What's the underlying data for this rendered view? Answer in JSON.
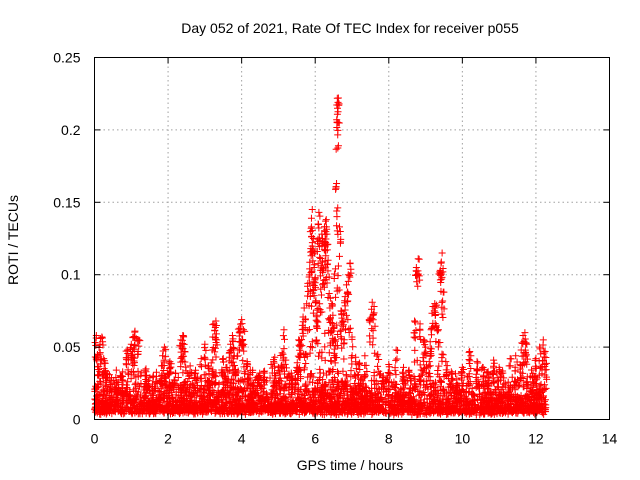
{
  "chart_data": {
    "type": "scatter",
    "title": "Day 052 of 2021, Rate Of TEC Index for receiver p055",
    "xlabel": "GPS time / hours",
    "ylabel": "ROTI / TECUs",
    "xlim": [
      0,
      14
    ],
    "ylim": [
      0,
      0.25
    ],
    "x_ticks": [
      0,
      2,
      4,
      6,
      8,
      10,
      12,
      14
    ],
    "x_tick_labels": [
      "0",
      "2",
      "4",
      "6",
      "8",
      "10",
      "12",
      "14"
    ],
    "y_ticks": [
      0,
      0.05,
      0.1,
      0.15,
      0.2,
      0.25
    ],
    "y_tick_labels": [
      "0",
      "0.05",
      "0.1",
      "0.15",
      "0.2",
      "0.25"
    ],
    "grid": true,
    "marker": "+",
    "color": "#ff0000",
    "series": [
      {
        "name": "ROTI",
        "points": [
          [
            0.05,
            0.058
          ],
          [
            0.1,
            0.044
          ],
          [
            0.15,
            0.052
          ],
          [
            0.2,
            0.057
          ],
          [
            0.25,
            0.042
          ],
          [
            0.3,
            0.033
          ],
          [
            0.45,
            0.027
          ],
          [
            0.6,
            0.022
          ],
          [
            0.75,
            0.03
          ],
          [
            0.9,
            0.048
          ],
          [
            1.0,
            0.052
          ],
          [
            1.05,
            0.057
          ],
          [
            1.1,
            0.061
          ],
          [
            1.2,
            0.055
          ],
          [
            1.4,
            0.035
          ],
          [
            1.6,
            0.03
          ],
          [
            1.8,
            0.028
          ],
          [
            1.85,
            0.044
          ],
          [
            1.9,
            0.05
          ],
          [
            2.05,
            0.04
          ],
          [
            2.2,
            0.032
          ],
          [
            2.35,
            0.055
          ],
          [
            2.4,
            0.058
          ],
          [
            2.45,
            0.047
          ],
          [
            2.6,
            0.037
          ],
          [
            2.75,
            0.032
          ],
          [
            2.9,
            0.042
          ],
          [
            3.0,
            0.052
          ],
          [
            3.1,
            0.037
          ],
          [
            3.2,
            0.048
          ],
          [
            3.25,
            0.066
          ],
          [
            3.3,
            0.068
          ],
          [
            3.5,
            0.042
          ],
          [
            3.6,
            0.036
          ],
          [
            3.7,
            0.052
          ],
          [
            3.75,
            0.058
          ],
          [
            3.8,
            0.044
          ],
          [
            3.9,
            0.048
          ],
          [
            3.95,
            0.063
          ],
          [
            4.0,
            0.069
          ],
          [
            4.05,
            0.062
          ],
          [
            4.15,
            0.04
          ],
          [
            4.3,
            0.034
          ],
          [
            4.45,
            0.03
          ],
          [
            4.6,
            0.033
          ],
          [
            4.8,
            0.038
          ],
          [
            4.9,
            0.043
          ],
          [
            5.0,
            0.036
          ],
          [
            5.1,
            0.046
          ],
          [
            5.15,
            0.062
          ],
          [
            5.2,
            0.041
          ],
          [
            5.35,
            0.032
          ],
          [
            5.5,
            0.036
          ],
          [
            5.55,
            0.055
          ],
          [
            5.6,
            0.052
          ],
          [
            5.65,
            0.065
          ],
          [
            5.7,
            0.077
          ],
          [
            5.75,
            0.045
          ],
          [
            5.8,
            0.094
          ],
          [
            5.85,
            0.104
          ],
          [
            5.88,
            0.118
          ],
          [
            5.9,
            0.133
          ],
          [
            5.92,
            0.145
          ],
          [
            5.95,
            0.125
          ],
          [
            5.97,
            0.105
          ],
          [
            6.0,
            0.098
          ],
          [
            6.02,
            0.082
          ],
          [
            6.05,
            0.072
          ],
          [
            6.08,
            0.135
          ],
          [
            6.1,
            0.143
          ],
          [
            6.12,
            0.112
          ],
          [
            6.15,
            0.09
          ],
          [
            6.18,
            0.128
          ],
          [
            6.2,
            0.125
          ],
          [
            6.22,
            0.104
          ],
          [
            6.25,
            0.122
          ],
          [
            6.28,
            0.137
          ],
          [
            6.3,
            0.138
          ],
          [
            6.32,
            0.121
          ],
          [
            6.35,
            0.11
          ],
          [
            6.38,
            0.087
          ],
          [
            6.4,
            0.077
          ],
          [
            6.42,
            0.06
          ],
          [
            6.45,
            0.08
          ],
          [
            6.48,
            0.072
          ],
          [
            6.5,
            0.063
          ],
          [
            6.52,
            0.055
          ],
          [
            6.55,
            0.104
          ],
          [
            6.58,
            0.163
          ],
          [
            6.6,
            0.205
          ],
          [
            6.62,
            0.219
          ],
          [
            6.63,
            0.222
          ],
          [
            6.64,
            0.217
          ],
          [
            6.66,
            0.133
          ],
          [
            6.7,
            0.075
          ],
          [
            6.75,
            0.068
          ],
          [
            6.8,
            0.082
          ],
          [
            6.85,
            0.093
          ],
          [
            6.9,
            0.1
          ],
          [
            6.95,
            0.108
          ],
          [
            7.0,
            0.057
          ],
          [
            7.1,
            0.043
          ],
          [
            7.2,
            0.039
          ],
          [
            7.35,
            0.044
          ],
          [
            7.5,
            0.07
          ],
          [
            7.55,
            0.081
          ],
          [
            7.6,
            0.078
          ],
          [
            7.7,
            0.045
          ],
          [
            7.85,
            0.03
          ],
          [
            8.0,
            0.038
          ],
          [
            8.2,
            0.048
          ],
          [
            8.4,
            0.036
          ],
          [
            8.55,
            0.034
          ],
          [
            8.7,
            0.068
          ],
          [
            8.75,
            0.105
          ],
          [
            8.8,
            0.111
          ],
          [
            8.85,
            0.066
          ],
          [
            8.95,
            0.055
          ],
          [
            9.0,
            0.05
          ],
          [
            9.1,
            0.04
          ],
          [
            9.15,
            0.062
          ],
          [
            9.2,
            0.078
          ],
          [
            9.25,
            0.08
          ],
          [
            9.3,
            0.079
          ],
          [
            9.35,
            0.062
          ],
          [
            9.4,
            0.103
          ],
          [
            9.42,
            0.108
          ],
          [
            9.45,
            0.115
          ],
          [
            9.48,
            0.088
          ],
          [
            9.55,
            0.04
          ],
          [
            9.7,
            0.033
          ],
          [
            9.85,
            0.028
          ],
          [
            10.0,
            0.036
          ],
          [
            10.2,
            0.047
          ],
          [
            10.4,
            0.04
          ],
          [
            10.55,
            0.036
          ],
          [
            10.7,
            0.033
          ],
          [
            10.85,
            0.041
          ],
          [
            11.0,
            0.036
          ],
          [
            11.1,
            0.032
          ],
          [
            11.3,
            0.042
          ],
          [
            11.45,
            0.044
          ],
          [
            11.6,
            0.048
          ],
          [
            11.65,
            0.058
          ],
          [
            11.7,
            0.06
          ],
          [
            11.75,
            0.052
          ],
          [
            11.9,
            0.03
          ],
          [
            12.0,
            0.042
          ],
          [
            12.1,
            0.05
          ],
          [
            12.2,
            0.055
          ],
          [
            12.25,
            0.047
          ]
        ]
      }
    ],
    "background_band": {
      "x_range": [
        0.0,
        12.3
      ],
      "y_min": 0.003,
      "y_max": 0.035,
      "density": 3200
    }
  }
}
